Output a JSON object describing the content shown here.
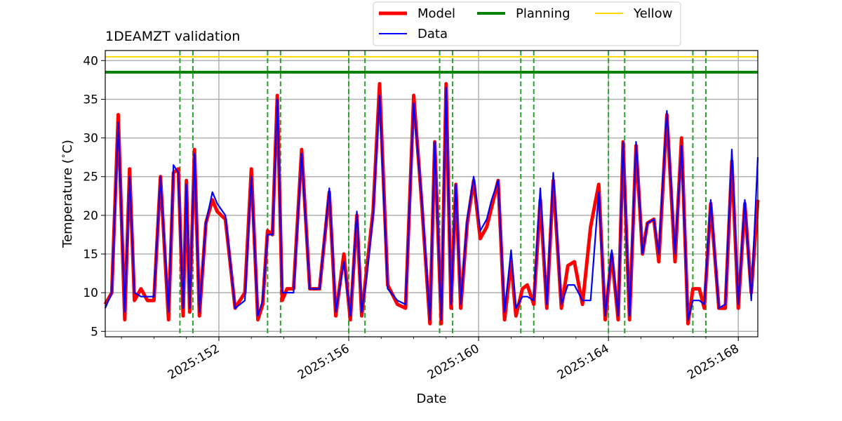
{
  "chart_data": {
    "type": "line",
    "title": "1DEAMZT validation",
    "xlabel": "Date",
    "ylabel": "Temperature ($^\\circ$C)",
    "xlim": [
      "2025:148.5",
      "2025:168.6"
    ],
    "ylim": [
      4.3,
      41.3
    ],
    "grid": true,
    "legend_position": "top-center",
    "x_tick_labels": [
      "2025:152",
      "2025:156",
      "2025:160",
      "2025:164",
      "2025:168"
    ],
    "y_tick_labels": [
      "5",
      "10",
      "15",
      "20",
      "25",
      "30",
      "35",
      "40"
    ],
    "colors": {
      "model": "#ff0000",
      "data": "#0000ff",
      "planning": "#008000",
      "yellow": "#ffd700",
      "vlines": "#2ca02c",
      "grid": "#b0b0b0"
    },
    "legend": [
      {
        "name": "Model",
        "color": "#ff0000"
      },
      {
        "name": "Data",
        "color": "#0000ff"
      },
      {
        "name": "Planning",
        "color": "#008000"
      },
      {
        "name": "Yellow",
        "color": "#ffd700"
      }
    ],
    "hlines": [
      {
        "name": "Planning",
        "y": 38.5
      },
      {
        "name": "Yellow",
        "y": 40.5
      }
    ],
    "vlines_x": [
      "2025:150.8",
      "2025:151.2",
      "2025:153.5",
      "2025:153.9",
      "2025:156.0",
      "2025:156.5",
      "2025:158.8",
      "2025:159.2",
      "2025:161.3",
      "2025:161.7",
      "2025:164.0",
      "2025:164.5",
      "2025:166.6",
      "2025:167.0"
    ],
    "series": [
      {
        "name": "Model",
        "x": [
          "2025:148.5",
          "2025:148.7",
          "2025:148.9",
          "2025:149.1",
          "2025:149.25",
          "2025:149.4",
          "2025:149.6",
          "2025:149.8",
          "2025:150.0",
          "2025:150.2",
          "2025:150.45",
          "2025:150.6",
          "2025:150.75",
          "2025:150.9",
          "2025:151.0",
          "2025:151.1",
          "2025:151.25",
          "2025:151.4",
          "2025:151.6",
          "2025:151.8",
          "2025:151.95",
          "2025:152.2",
          "2025:152.5",
          "2025:152.8",
          "2025:153.0",
          "2025:153.2",
          "2025:153.35",
          "2025:153.5",
          "2025:153.65",
          "2025:153.8",
          "2025:153.95",
          "2025:154.1",
          "2025:154.3",
          "2025:154.55",
          "2025:154.8",
          "2025:155.1",
          "2025:155.4",
          "2025:155.6",
          "2025:155.85",
          "2025:156.05",
          "2025:156.25",
          "2025:156.4",
          "2025:156.55",
          "2025:156.75",
          "2025:156.95",
          "2025:157.2",
          "2025:157.5",
          "2025:157.75",
          "2025:158.0",
          "2025:158.25",
          "2025:158.5",
          "2025:158.65",
          "2025:158.85",
          "2025:159.0",
          "2025:159.15",
          "2025:159.3",
          "2025:159.45",
          "2025:159.65",
          "2025:159.85",
          "2025:160.05",
          "2025:160.25",
          "2025:160.4",
          "2025:160.6",
          "2025:160.8",
          "2025:161.0",
          "2025:161.15",
          "2025:161.35",
          "2025:161.5",
          "2025:161.7",
          "2025:161.9",
          "2025:162.1",
          "2025:162.3",
          "2025:162.55",
          "2025:162.75",
          "2025:162.95",
          "2025:163.2",
          "2025:163.45",
          "2025:163.7",
          "2025:163.9",
          "2025:164.1",
          "2025:164.3",
          "2025:164.45",
          "2025:164.65",
          "2025:164.85",
          "2025:165.05",
          "2025:165.2",
          "2025:165.4",
          "2025:165.55",
          "2025:165.8",
          "2025:166.05",
          "2025:166.25",
          "2025:166.45",
          "2025:166.6",
          "2025:166.8",
          "2025:166.95",
          "2025:167.15",
          "2025:167.4",
          "2025:167.6",
          "2025:167.8",
          "2025:168.0",
          "2025:168.2",
          "2025:168.4",
          "2025:168.6"
        ],
        "y": [
          8.5,
          10.0,
          33.0,
          6.5,
          26.0,
          9.0,
          10.5,
          9.0,
          9.0,
          25.0,
          6.5,
          25.5,
          26.0,
          7.0,
          24.5,
          7.5,
          28.5,
          7.0,
          19.0,
          22.0,
          20.5,
          19.5,
          8.0,
          10.0,
          26.0,
          6.5,
          8.5,
          18.0,
          17.5,
          35.5,
          9.0,
          10.5,
          10.5,
          28.5,
          10.5,
          10.5,
          23.0,
          7.0,
          15.0,
          6.5,
          20.0,
          7.0,
          13.0,
          20.5,
          37.0,
          11.0,
          8.5,
          8.0,
          35.5,
          21.5,
          6.0,
          29.5,
          6.0,
          37.0,
          8.0,
          24.0,
          8.0,
          19.0,
          24.5,
          17.0,
          18.5,
          21.0,
          24.5,
          6.5,
          14.0,
          7.0,
          10.5,
          11.0,
          8.5,
          22.0,
          8.0,
          24.5,
          8.0,
          13.5,
          14.0,
          8.5,
          18.5,
          24.0,
          6.5,
          15.0,
          6.5,
          29.5,
          6.5,
          29.0,
          15.0,
          19.0,
          19.5,
          14.0,
          33.0,
          14.0,
          30.0,
          6.0,
          10.5,
          10.5,
          8.0,
          21.5,
          8.0,
          8.0,
          27.0,
          8.0,
          21.5,
          10.0,
          22.0
        ]
      },
      {
        "name": "Data",
        "x": [
          "2025:148.5",
          "2025:148.7",
          "2025:148.9",
          "2025:149.1",
          "2025:149.25",
          "2025:149.4",
          "2025:149.6",
          "2025:149.8",
          "2025:150.0",
          "2025:150.2",
          "2025:150.45",
          "2025:150.6",
          "2025:150.75",
          "2025:150.9",
          "2025:151.0",
          "2025:151.1",
          "2025:151.25",
          "2025:151.4",
          "2025:151.6",
          "2025:151.8",
          "2025:151.95",
          "2025:152.2",
          "2025:152.5",
          "2025:152.8",
          "2025:153.0",
          "2025:153.2",
          "2025:153.35",
          "2025:153.5",
          "2025:153.65",
          "2025:153.8",
          "2025:153.95",
          "2025:154.1",
          "2025:154.3",
          "2025:154.55",
          "2025:154.8",
          "2025:155.1",
          "2025:155.4",
          "2025:155.6",
          "2025:155.85",
          "2025:156.05",
          "2025:156.25",
          "2025:156.4",
          "2025:156.55",
          "2025:156.75",
          "2025:156.95",
          "2025:157.2",
          "2025:157.5",
          "2025:157.75",
          "2025:158.0",
          "2025:158.25",
          "2025:158.5",
          "2025:158.65",
          "2025:158.85",
          "2025:159.0",
          "2025:159.15",
          "2025:159.3",
          "2025:159.45",
          "2025:159.65",
          "2025:159.85",
          "2025:160.05",
          "2025:160.25",
          "2025:160.4",
          "2025:160.6",
          "2025:160.8",
          "2025:161.0",
          "2025:161.15",
          "2025:161.35",
          "2025:161.5",
          "2025:161.7",
          "2025:161.9",
          "2025:162.1",
          "2025:162.3",
          "2025:162.55",
          "2025:162.75",
          "2025:162.95",
          "2025:163.2",
          "2025:163.45",
          "2025:163.7",
          "2025:163.9",
          "2025:164.1",
          "2025:164.3",
          "2025:164.45",
          "2025:164.65",
          "2025:164.85",
          "2025:165.05",
          "2025:165.2",
          "2025:165.4",
          "2025:165.55",
          "2025:165.8",
          "2025:166.05",
          "2025:166.25",
          "2025:166.45",
          "2025:166.6",
          "2025:166.8",
          "2025:166.95",
          "2025:167.15",
          "2025:167.4",
          "2025:167.6",
          "2025:167.8",
          "2025:168.0",
          "2025:168.2",
          "2025:168.4",
          "2025:168.6"
        ],
        "y": [
          8.0,
          10.0,
          32.0,
          7.5,
          25.0,
          10.0,
          9.5,
          9.5,
          9.5,
          25.0,
          7.5,
          26.5,
          25.5,
          8.0,
          24.0,
          8.0,
          28.0,
          7.5,
          19.0,
          23.0,
          21.5,
          20.0,
          8.0,
          9.0,
          25.0,
          7.0,
          9.0,
          17.5,
          17.5,
          35.0,
          10.0,
          10.0,
          10.0,
          28.0,
          10.5,
          10.5,
          23.5,
          7.5,
          14.0,
          7.0,
          20.5,
          7.5,
          12.0,
          20.0,
          35.5,
          10.5,
          9.0,
          8.5,
          34.5,
          22.0,
          6.5,
          29.5,
          6.5,
          36.5,
          8.5,
          24.0,
          8.5,
          19.5,
          25.0,
          18.0,
          19.5,
          22.0,
          24.5,
          7.5,
          15.5,
          8.0,
          9.5,
          9.5,
          9.0,
          23.5,
          8.5,
          25.5,
          8.5,
          11.0,
          11.0,
          9.0,
          9.0,
          23.0,
          7.0,
          15.5,
          7.0,
          29.5,
          7.0,
          29.5,
          15.0,
          19.0,
          19.5,
          15.0,
          33.5,
          15.0,
          29.0,
          6.5,
          9.0,
          9.0,
          8.5,
          22.0,
          8.0,
          8.5,
          28.5,
          8.5,
          22.0,
          9.0,
          27.5
        ]
      }
    ]
  }
}
